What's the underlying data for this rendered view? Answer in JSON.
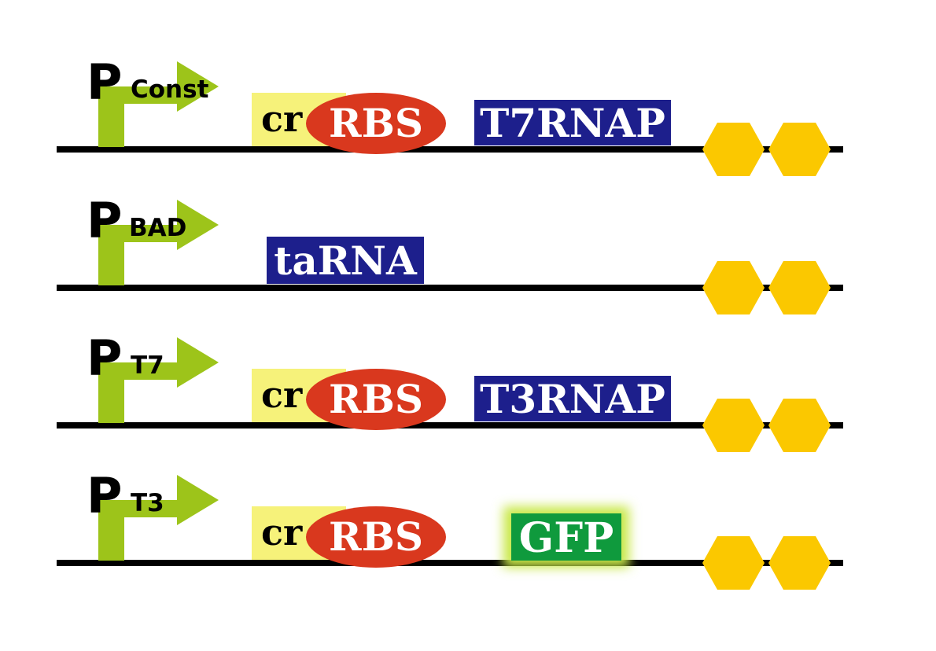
{
  "colors": {
    "backbone": "#000000",
    "promoter": "#9dc41a",
    "cr_box": "#f6f27a",
    "rbs": "#d9381e",
    "gene_blue": "#1d1f8c",
    "gene_green": "#0f9a3d",
    "terminator": "#fbc800",
    "label_light": "#ffffff"
  },
  "constructs": [
    {
      "promoter": {
        "letter": "P",
        "subscript": "Const"
      },
      "cr_label": "cr",
      "rbs_label": "RBS",
      "gene": {
        "label": "T7RNAP",
        "color": "#1d1f8c"
      },
      "terminator_icon": "double-hexagon-terminator-icon"
    },
    {
      "promoter": {
        "letter": "P",
        "subscript": "BAD"
      },
      "gene": {
        "label": "taRNA",
        "color": "#1d1f8c"
      },
      "terminator_icon": "double-hexagon-terminator-icon"
    },
    {
      "promoter": {
        "letter": "P",
        "subscript": "T7"
      },
      "cr_label": "cr",
      "rbs_label": "RBS",
      "gene": {
        "label": "T3RNAP",
        "color": "#1d1f8c"
      },
      "terminator_icon": "double-hexagon-terminator-icon"
    },
    {
      "promoter": {
        "letter": "P",
        "subscript": "T3"
      },
      "cr_label": "cr",
      "rbs_label": "RBS",
      "gene": {
        "label": "GFP",
        "color": "#0f9a3d"
      },
      "terminator_icon": "double-hexagon-terminator-icon"
    }
  ]
}
